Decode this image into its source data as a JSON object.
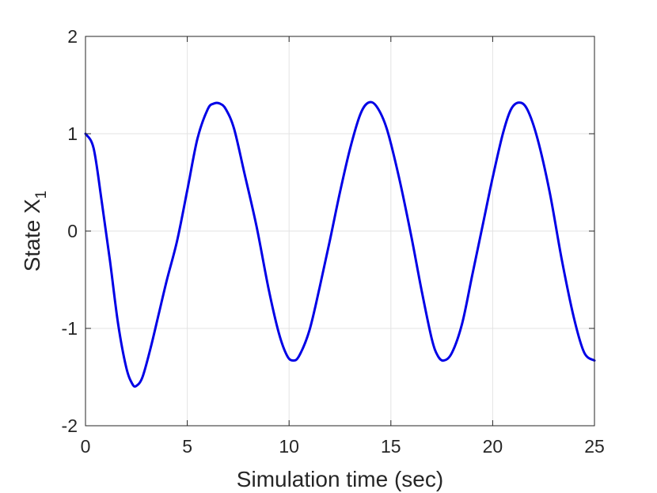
{
  "chart_data": {
    "type": "line",
    "title": "",
    "xlabel": "Simulation time (sec)",
    "ylabel": "State X",
    "ylabel_subscript": "1",
    "xlim": [
      0,
      25
    ],
    "ylim": [
      -2,
      2
    ],
    "xticks": [
      0,
      5,
      10,
      15,
      20,
      25
    ],
    "yticks": [
      -2,
      -1,
      0,
      1,
      2
    ],
    "xtick_labels": [
      "0",
      "5",
      "10",
      "15",
      "20",
      "25"
    ],
    "ytick_labels": [
      "-2",
      "-1",
      "0",
      "1",
      "2"
    ],
    "grid": true,
    "series": [
      {
        "color": "#0000e6",
        "x": [
          0,
          0.4,
          0.8,
          1.2,
          1.6,
          2.0,
          2.3,
          2.5,
          2.8,
          3.2,
          3.6,
          4.0,
          4.5,
          5.0,
          5.5,
          6.0,
          6.3,
          6.6,
          6.9,
          7.3,
          7.8,
          8.4,
          9.0,
          9.5,
          9.9,
          10.2,
          10.5,
          11.0,
          11.5,
          12.0,
          12.5,
          13.0,
          13.5,
          13.9,
          14.3,
          14.8,
          15.4,
          16.0,
          16.5,
          17.0,
          17.3,
          17.6,
          18.0,
          18.5,
          19.0,
          19.5,
          20.0,
          20.5,
          20.9,
          21.3,
          21.7,
          22.2,
          22.8,
          23.4,
          24.0,
          24.5,
          25.0
        ],
        "y": [
          1.0,
          0.85,
          0.3,
          -0.3,
          -0.95,
          -1.4,
          -1.57,
          -1.59,
          -1.5,
          -1.2,
          -0.85,
          -0.5,
          -0.1,
          0.42,
          0.95,
          1.25,
          1.31,
          1.31,
          1.25,
          1.05,
          0.6,
          0.05,
          -0.6,
          -1.05,
          -1.28,
          -1.33,
          -1.28,
          -1.02,
          -0.58,
          -0.1,
          0.4,
          0.85,
          1.2,
          1.32,
          1.28,
          1.05,
          0.55,
          -0.05,
          -0.6,
          -1.1,
          -1.28,
          -1.33,
          -1.25,
          -0.95,
          -0.45,
          0.05,
          0.55,
          1.0,
          1.25,
          1.32,
          1.25,
          0.95,
          0.4,
          -0.3,
          -0.9,
          -1.25,
          -1.33
        ]
      }
    ]
  }
}
